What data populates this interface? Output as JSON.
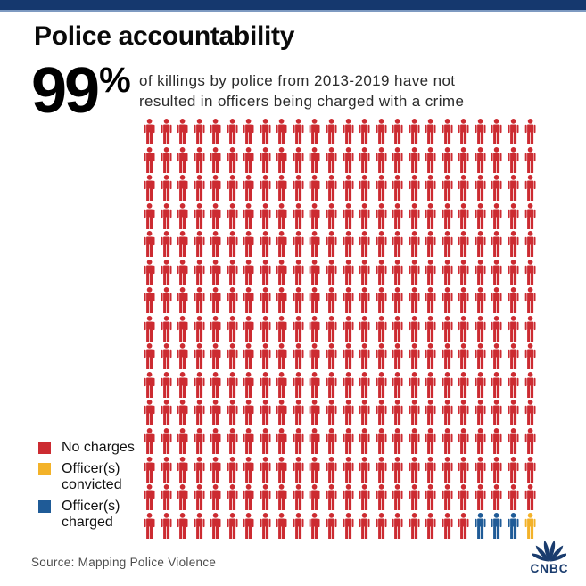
{
  "header": {
    "title": "Police accountability",
    "stat_number": "99",
    "stat_percent": "%",
    "description_line1": "of killings by police from 2013-2019 have not",
    "description_line2": "resulted in officers being charged with a crime"
  },
  "colors": {
    "top_bar": "#15386e",
    "top_bar_light": "#7e9ac1",
    "no_charges_red": "#cc2b31",
    "convicted_gold": "#f3b229",
    "charged_blue": "#1f5b97",
    "brand_navy": "#1a3c6e",
    "source_gray": "#4c4c4c"
  },
  "legend": {
    "items": [
      {
        "label": "No charges",
        "color": "#cc2b31"
      },
      {
        "label": "Officer(s) convicted",
        "color": "#f3b229"
      },
      {
        "label": "Officer(s) charged",
        "color": "#1f5b97"
      }
    ]
  },
  "chart_data": {
    "type": "pictogram",
    "title": "Police accountability",
    "stat_headline": "99% of killings by police from 2013-2019 have not resulted in officers being charged with a crime",
    "grid": {
      "columns": 24,
      "rows": 15,
      "total_icons": 360
    },
    "series": [
      {
        "name": "No charges",
        "count": 356,
        "color": "#cc2b31"
      },
      {
        "name": "Officer(s) charged",
        "count": 3,
        "color": "#1f5b97"
      },
      {
        "name": "Officer(s) convicted",
        "count": 1,
        "color": "#f3b229"
      }
    ],
    "render_sequence": [
      {
        "name": "No charges",
        "color": "#cc2b31",
        "count": 356
      },
      {
        "name": "Officer(s) charged",
        "color": "#1f5b97",
        "count": 3
      },
      {
        "name": "Officer(s) convicted",
        "color": "#f3b229",
        "count": 1
      }
    ],
    "legend_position": "bottom-left",
    "source": "Mapping Police Violence"
  },
  "footer": {
    "source": "Source: Mapping Police Violence",
    "brand": "CNBC"
  }
}
